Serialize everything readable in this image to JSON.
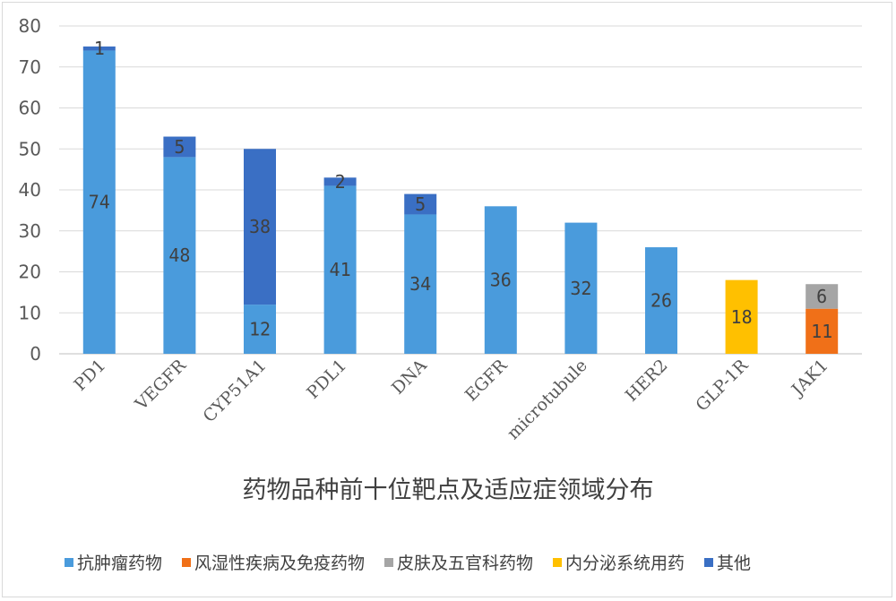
{
  "chart_data": {
    "type": "bar",
    "stacked": true,
    "title": "药物品种前十位靶点及适应症领域分布",
    "xlabel": "",
    "ylabel": "",
    "ylim": [
      0,
      80
    ],
    "yticks": [
      0,
      10,
      20,
      30,
      40,
      50,
      60,
      70,
      80
    ],
    "grid": true,
    "legend_position": "bottom",
    "categories": [
      "PD1",
      "VEGFR",
      "CYP51A1",
      "PDL1",
      "DNA",
      "EGFR",
      "microtubule",
      "HER2",
      "GLP-1R",
      "JAK1"
    ],
    "series": [
      {
        "name": "抗肿瘤药物",
        "color": "#4a9bdc",
        "values": [
          74,
          48,
          12,
          41,
          34,
          36,
          32,
          26,
          0,
          0
        ]
      },
      {
        "name": "风湿性疾病及免疫药物",
        "color": "#f07018",
        "values": [
          0,
          0,
          0,
          0,
          0,
          0,
          0,
          0,
          0,
          11
        ]
      },
      {
        "name": "皮肤及五官科药物",
        "color": "#a5a5a5",
        "values": [
          0,
          0,
          0,
          0,
          0,
          0,
          0,
          0,
          0,
          6
        ]
      },
      {
        "name": "内分泌系统用药",
        "color": "#ffc000",
        "values": [
          0,
          0,
          0,
          0,
          0,
          0,
          0,
          0,
          18,
          0
        ]
      },
      {
        "name": "其他",
        "color": "#3a6fc4",
        "values": [
          1,
          5,
          38,
          2,
          5,
          0,
          0,
          0,
          0,
          0
        ]
      }
    ]
  }
}
